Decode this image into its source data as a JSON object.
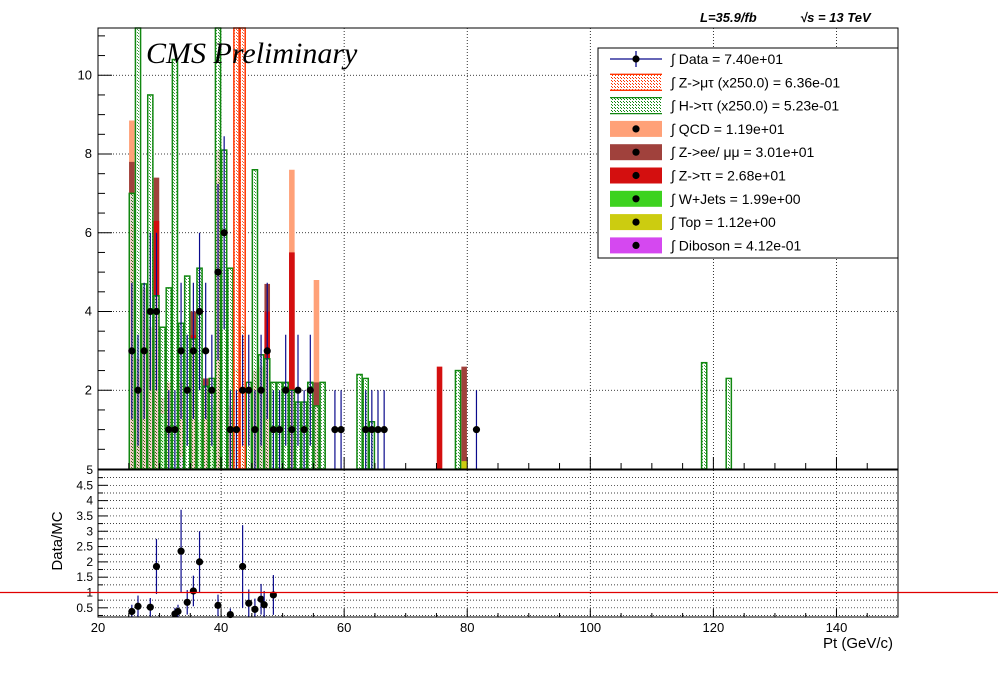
{
  "header": {
    "lumi_label": "L=35.9/fb",
    "energy_label": "√s = 13 TeV",
    "cms_label": "CMS Preliminary"
  },
  "chart_data": [
    {
      "type": "bar",
      "panel": "main",
      "xlim": [
        20,
        150
      ],
      "ylim": [
        0,
        11.2
      ],
      "yticks": [
        2,
        4,
        6,
        8,
        10
      ],
      "xticks": [
        20,
        40,
        60,
        80,
        100,
        120,
        140
      ],
      "grid": true,
      "legend_position": "top-right",
      "legend": [
        {
          "label": "∫ Data = 7.40e+01",
          "color": "#000000",
          "style": "marker-line"
        },
        {
          "label": "∫ Z->μτ (x250.0) = 6.36e-01",
          "color": "#ff3300",
          "style": "hatch"
        },
        {
          "label": "∫ H->ττ (x250.0) = 5.23e-01",
          "color": "#118811",
          "style": "hatch"
        },
        {
          "label": "∫ QCD = 1.19e+01",
          "color": "#ffa178",
          "style": "fill-marker"
        },
        {
          "label": "∫ Z->ee/ μμ = 3.01e+01",
          "color": "#a0413c",
          "style": "fill-marker"
        },
        {
          "label": "∫ Z->ττ = 2.68e+01",
          "color": "#d40f0f",
          "style": "fill-marker"
        },
        {
          "label": "∫ W+Jets = 1.99e+00",
          "color": "#3dd21f",
          "style": "fill-marker"
        },
        {
          "label": "∫ Top = 1.12e+00",
          "color": "#cccc10",
          "style": "fill-marker"
        },
        {
          "label": "∫ Diboson = 4.12e-01",
          "color": "#d548f0",
          "style": "fill-marker"
        }
      ],
      "series": [
        {
          "name": "Data",
          "x": [
            25.5,
            26.5,
            27.5,
            28.5,
            29.5,
            31.5,
            32.5,
            33.5,
            34.5,
            35.5,
            36.5,
            37.5,
            38.5,
            39.5,
            40.5,
            41.5,
            42.5,
            43.5,
            44.5,
            45.5,
            46.5,
            47.5,
            48.5,
            49.5,
            50.5,
            51.5,
            52.5,
            53.5,
            54.5,
            58.5,
            59.5,
            63.5,
            64.5,
            65.5,
            66.5,
            81.5
          ],
          "values": [
            3,
            2,
            3,
            4,
            4,
            1,
            1,
            3,
            2,
            3,
            4,
            3,
            2,
            5,
            6,
            1,
            1,
            2,
            2,
            1,
            2,
            3,
            1,
            1,
            2,
            1,
            2,
            1,
            2,
            1,
            1,
            1,
            1,
            1,
            1,
            1
          ],
          "errors": [
            1.73,
            1.41,
            1.73,
            2.0,
            2.0,
            1.0,
            1.0,
            1.73,
            1.41,
            1.73,
            2.0,
            1.73,
            1.41,
            2.24,
            2.45,
            1.0,
            1.0,
            1.41,
            1.41,
            1.0,
            1.41,
            1.73,
            1.0,
            1.0,
            1.41,
            1.0,
            1.41,
            1.0,
            1.41,
            1.0,
            1.0,
            1.0,
            1.0,
            1.0,
            1.0,
            1.0
          ]
        },
        {
          "name": "QCD",
          "x": [
            25.5,
            26.5,
            27.5,
            28.5,
            29.5,
            30.5,
            31.5,
            33.5,
            35.5,
            37.5,
            39.5,
            41.5,
            43.5,
            45.5,
            47.5,
            51.5,
            55.5
          ],
          "values": [
            8.85,
            2.8,
            4.6,
            3.6,
            1.6,
            1.8,
            1.3,
            2.2,
            4.0,
            2.3,
            4.2,
            1.6,
            2.2,
            1.8,
            4.7,
            7.6,
            4.8
          ]
        },
        {
          "name": "Z->ee/ μμ",
          "x": [
            25.5,
            26.5,
            27.5,
            28.5,
            29.5,
            30.5,
            31.5,
            33.5,
            35.5,
            37.5,
            39.5,
            41.5,
            43.5,
            45.5,
            46.5,
            47.5,
            51.5,
            55.5,
            79.5
          ],
          "values": [
            7.8,
            2.8,
            4.6,
            3.6,
            7.4,
            1.8,
            1.3,
            2.2,
            4.0,
            2.3,
            8.1,
            1.6,
            2.2,
            2.5,
            2.6,
            4.7,
            5.5,
            2.2,
            2.6
          ]
        },
        {
          "name": "Z->ττ",
          "x": [
            25.5,
            26.5,
            27.5,
            28.5,
            29.5,
            30.5,
            31.5,
            33.5,
            35.5,
            37.5,
            39.5,
            41.5,
            43.5,
            45.5,
            47.5,
            51.5,
            75.5
          ],
          "values": [
            6.2,
            2.4,
            4.0,
            3.0,
            6.3,
            1.5,
            2.2,
            1.8,
            3.4,
            2.0,
            7.4,
            1.3,
            1.9,
            2.1,
            4.0,
            5.5,
            2.6
          ]
        },
        {
          "name": "W+Jets",
          "x": [
            30.5,
            36.5,
            38.5,
            42.5
          ],
          "values": [
            1.4,
            1.2,
            1.6,
            1.1
          ]
        },
        {
          "name": "Top",
          "x": [
            31.5,
            79.5
          ],
          "values": [
            0.8,
            0.2
          ]
        },
        {
          "name": "Diboson",
          "x": [
            33.5
          ],
          "values": [
            0.3
          ]
        },
        {
          "name": "H->ττ (x250.0)",
          "x": [
            25.5,
            26.5,
            27.5,
            28.5,
            29.5,
            30.5,
            31.5,
            32.5,
            33.5,
            34.5,
            35.5,
            36.5,
            37.5,
            38.5,
            39.5,
            40.5,
            41.5,
            42.5,
            43.5,
            44.5,
            45.5,
            46.5,
            47.5,
            48.5,
            49.5,
            50.5,
            51.5,
            52.5,
            53.5,
            54.5,
            55.5,
            56.5,
            62.5,
            63.5,
            64.5,
            78.5,
            118.5,
            122.5
          ],
          "values": [
            7.0,
            11.2,
            4.7,
            9.5,
            4.4,
            3.6,
            4.6,
            10.4,
            3.7,
            4.9,
            3.3,
            5.1,
            2.1,
            2.3,
            11.2,
            8.1,
            5.1,
            2.5,
            3.6,
            2.2,
            7.6,
            2.9,
            2.8,
            2.2,
            2.2,
            2.2,
            2.0,
            1.7,
            1.7,
            2.2,
            1.6,
            2.2,
            2.4,
            2.3,
            1.2,
            2.5,
            2.7,
            2.3
          ]
        },
        {
          "name": "Z->μτ (x250.0)",
          "x": [
            42.5,
            43.5
          ],
          "values": [
            11.2,
            11.2
          ]
        }
      ]
    },
    {
      "type": "scatter",
      "panel": "ratio",
      "ylabel": "Data/MC",
      "xlabel": "Pt (GeV/c)",
      "xlim": [
        20,
        150
      ],
      "ylim": [
        0.2,
        5
      ],
      "yticks": [
        0.5,
        1,
        1.5,
        2,
        2.5,
        3,
        3.5,
        4,
        4.5,
        5
      ],
      "ytick_labels": [
        "0.5",
        "1",
        "1.5",
        "2",
        "2.5",
        "3",
        "3.5",
        "4",
        "4.5",
        "5"
      ],
      "xticks": [
        20,
        40,
        60,
        80,
        100,
        120,
        140
      ],
      "reference_line": 1,
      "grid": true,
      "series": [
        {
          "name": "Data/MC",
          "x": [
            25.5,
            26.5,
            28.5,
            29.5,
            32.5,
            33.0,
            33.5,
            34.5,
            35.5,
            36.5,
            39.5,
            41.5,
            43.5,
            44.5,
            45.5,
            46.5,
            47.0,
            48.5
          ],
          "values": [
            0.38,
            0.55,
            0.52,
            1.85,
            0.3,
            0.38,
            2.35,
            0.68,
            1.05,
            2.0,
            0.58,
            0.28,
            1.85,
            0.65,
            0.45,
            0.78,
            0.6,
            0.92
          ],
          "errors": [
            0.22,
            0.35,
            0.3,
            0.9,
            0.2,
            0.22,
            1.35,
            0.4,
            0.5,
            1.0,
            0.35,
            0.2,
            1.35,
            0.45,
            0.35,
            0.5,
            0.45,
            0.65
          ]
        }
      ]
    }
  ]
}
